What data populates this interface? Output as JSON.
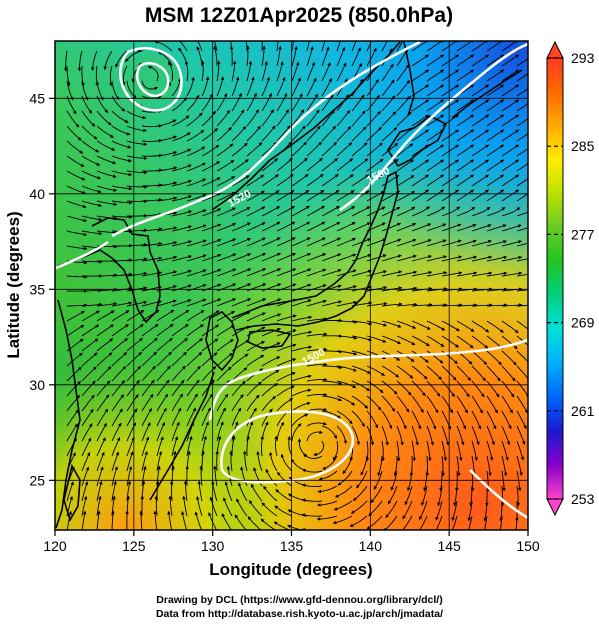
{
  "title": "MSM 12Z01Apr2025 (850.0hPa)",
  "x_axis": {
    "label": "Longitude (degrees)",
    "range": [
      120,
      150
    ],
    "ticks": [
      {
        "value": 120,
        "label": "120"
      },
      {
        "value": 125,
        "label": "125"
      },
      {
        "value": 130,
        "label": "130"
      },
      {
        "value": 135,
        "label": "135"
      },
      {
        "value": 140,
        "label": "140"
      },
      {
        "value": 145,
        "label": "145"
      },
      {
        "value": 150,
        "label": "150"
      }
    ]
  },
  "y_axis": {
    "label": "Latitude  (degrees)",
    "range": [
      22.4,
      48
    ],
    "ticks": [
      {
        "value": 25,
        "label": "25"
      },
      {
        "value": 30,
        "label": "30"
      },
      {
        "value": 35,
        "label": "35"
      },
      {
        "value": 40,
        "label": "40"
      },
      {
        "value": 45,
        "label": "45"
      }
    ]
  },
  "colorbar": {
    "range": [
      253,
      293
    ],
    "ticks": [
      {
        "value": 293,
        "label": "293"
      },
      {
        "value": 285,
        "label": "285"
      },
      {
        "value": 277,
        "label": "277"
      },
      {
        "value": 269,
        "label": "269"
      },
      {
        "value": 261,
        "label": "261"
      },
      {
        "value": 253,
        "label": "253"
      }
    ],
    "colors": [
      "#ff44cc",
      "#8800cc",
      "#1a1ad0",
      "#0066ff",
      "#00b0ff",
      "#00e0d8",
      "#00d080",
      "#22c422",
      "#66cc22",
      "#bbe000",
      "#ffee00",
      "#ffaa00",
      "#ff6a00",
      "#ff3a20"
    ]
  },
  "contour_labels": [
    {
      "text": "1520",
      "lon": 131.8,
      "lat": 39.6
    },
    {
      "text": "1500",
      "lon": 136.5,
      "lat": 31.3
    },
    {
      "text": "1500",
      "lon": 140.6,
      "lat": 40.8
    }
  ],
  "grid": true,
  "credits": [
    "Drawing by DCL (https://www.gfd-dennou.org/library/dcl/)",
    "Data from http://database.rish.kyoto-u.ac.jp/arch/jmadata/"
  ]
}
